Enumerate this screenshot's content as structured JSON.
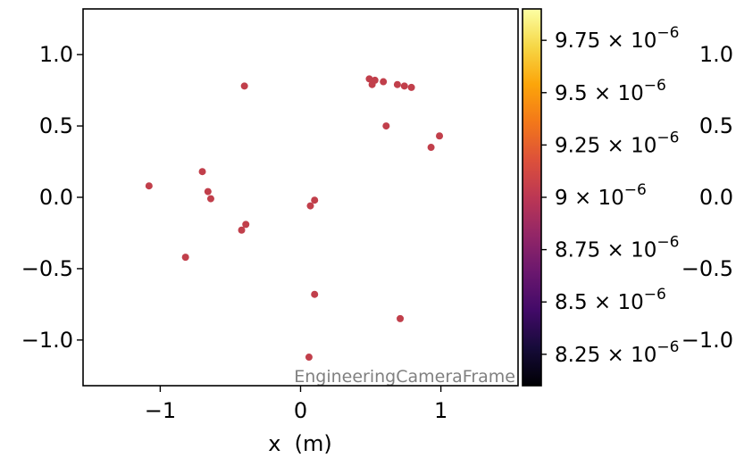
{
  "chart_data": {
    "type": "scatter",
    "title": "",
    "xlabel": "x  (m)",
    "ylabel": "",
    "xlim": [
      -1.55,
      1.55
    ],
    "ylim": [
      -1.32,
      1.32
    ],
    "xticks": [
      -1,
      0,
      1
    ],
    "xtick_labels": [
      "−1",
      "0",
      "1"
    ],
    "yticks": [
      -1.0,
      -0.5,
      0.0,
      0.5,
      1.0
    ],
    "ytick_labels": [
      "−1.0",
      "−0.5",
      "0.0",
      "0.5",
      "1.0"
    ],
    "right_yticks": [
      -1.0,
      -0.5,
      0.0,
      0.5,
      1.0
    ],
    "right_ytick_labels": [
      "−1.0",
      "−0.5",
      "0.0",
      "0.5",
      "1.0"
    ],
    "annotation": "EngineeringCameraFrame",
    "annotation_color": "#808080",
    "marker_color": "#c13f4b",
    "grid": false,
    "points": [
      {
        "x": -1.08,
        "y": 0.08
      },
      {
        "x": -0.82,
        "y": -0.42
      },
      {
        "x": -0.7,
        "y": 0.18
      },
      {
        "x": -0.66,
        "y": 0.04
      },
      {
        "x": -0.64,
        "y": -0.01
      },
      {
        "x": -0.42,
        "y": -0.23
      },
      {
        "x": -0.4,
        "y": 0.78
      },
      {
        "x": -0.39,
        "y": -0.19
      },
      {
        "x": 0.06,
        "y": -1.12
      },
      {
        "x": 0.07,
        "y": -0.06
      },
      {
        "x": 0.1,
        "y": -0.02
      },
      {
        "x": 0.1,
        "y": -0.68
      },
      {
        "x": 0.49,
        "y": 0.83
      },
      {
        "x": 0.51,
        "y": 0.79
      },
      {
        "x": 0.53,
        "y": 0.82
      },
      {
        "x": 0.59,
        "y": 0.81
      },
      {
        "x": 0.61,
        "y": 0.5
      },
      {
        "x": 0.69,
        "y": 0.79
      },
      {
        "x": 0.71,
        "y": -0.85
      },
      {
        "x": 0.74,
        "y": 0.78
      },
      {
        "x": 0.79,
        "y": 0.77
      },
      {
        "x": 0.93,
        "y": 0.35
      },
      {
        "x": 0.99,
        "y": 0.43
      }
    ],
    "colorbar": {
      "colormap": "inferno",
      "range": [
        8.1e-06,
        9.9e-06
      ],
      "value": 9e-06,
      "ticks": [
        {
          "value": 8.25e-06,
          "mantissa": "8.25",
          "exponent": "−6"
        },
        {
          "value": 8.5e-06,
          "mantissa": "8.5",
          "exponent": "−6"
        },
        {
          "value": 8.75e-06,
          "mantissa": "8.75",
          "exponent": "−6"
        },
        {
          "value": 9e-06,
          "mantissa": "9",
          "exponent": "−6"
        },
        {
          "value": 9.25e-06,
          "mantissa": "9.25",
          "exponent": "−6"
        },
        {
          "value": 9.5e-06,
          "mantissa": "9.5",
          "exponent": "−6"
        },
        {
          "value": 9.75e-06,
          "mantissa": "9.75",
          "exponent": "−6"
        }
      ],
      "times_symbol": "×",
      "base": "10"
    }
  }
}
